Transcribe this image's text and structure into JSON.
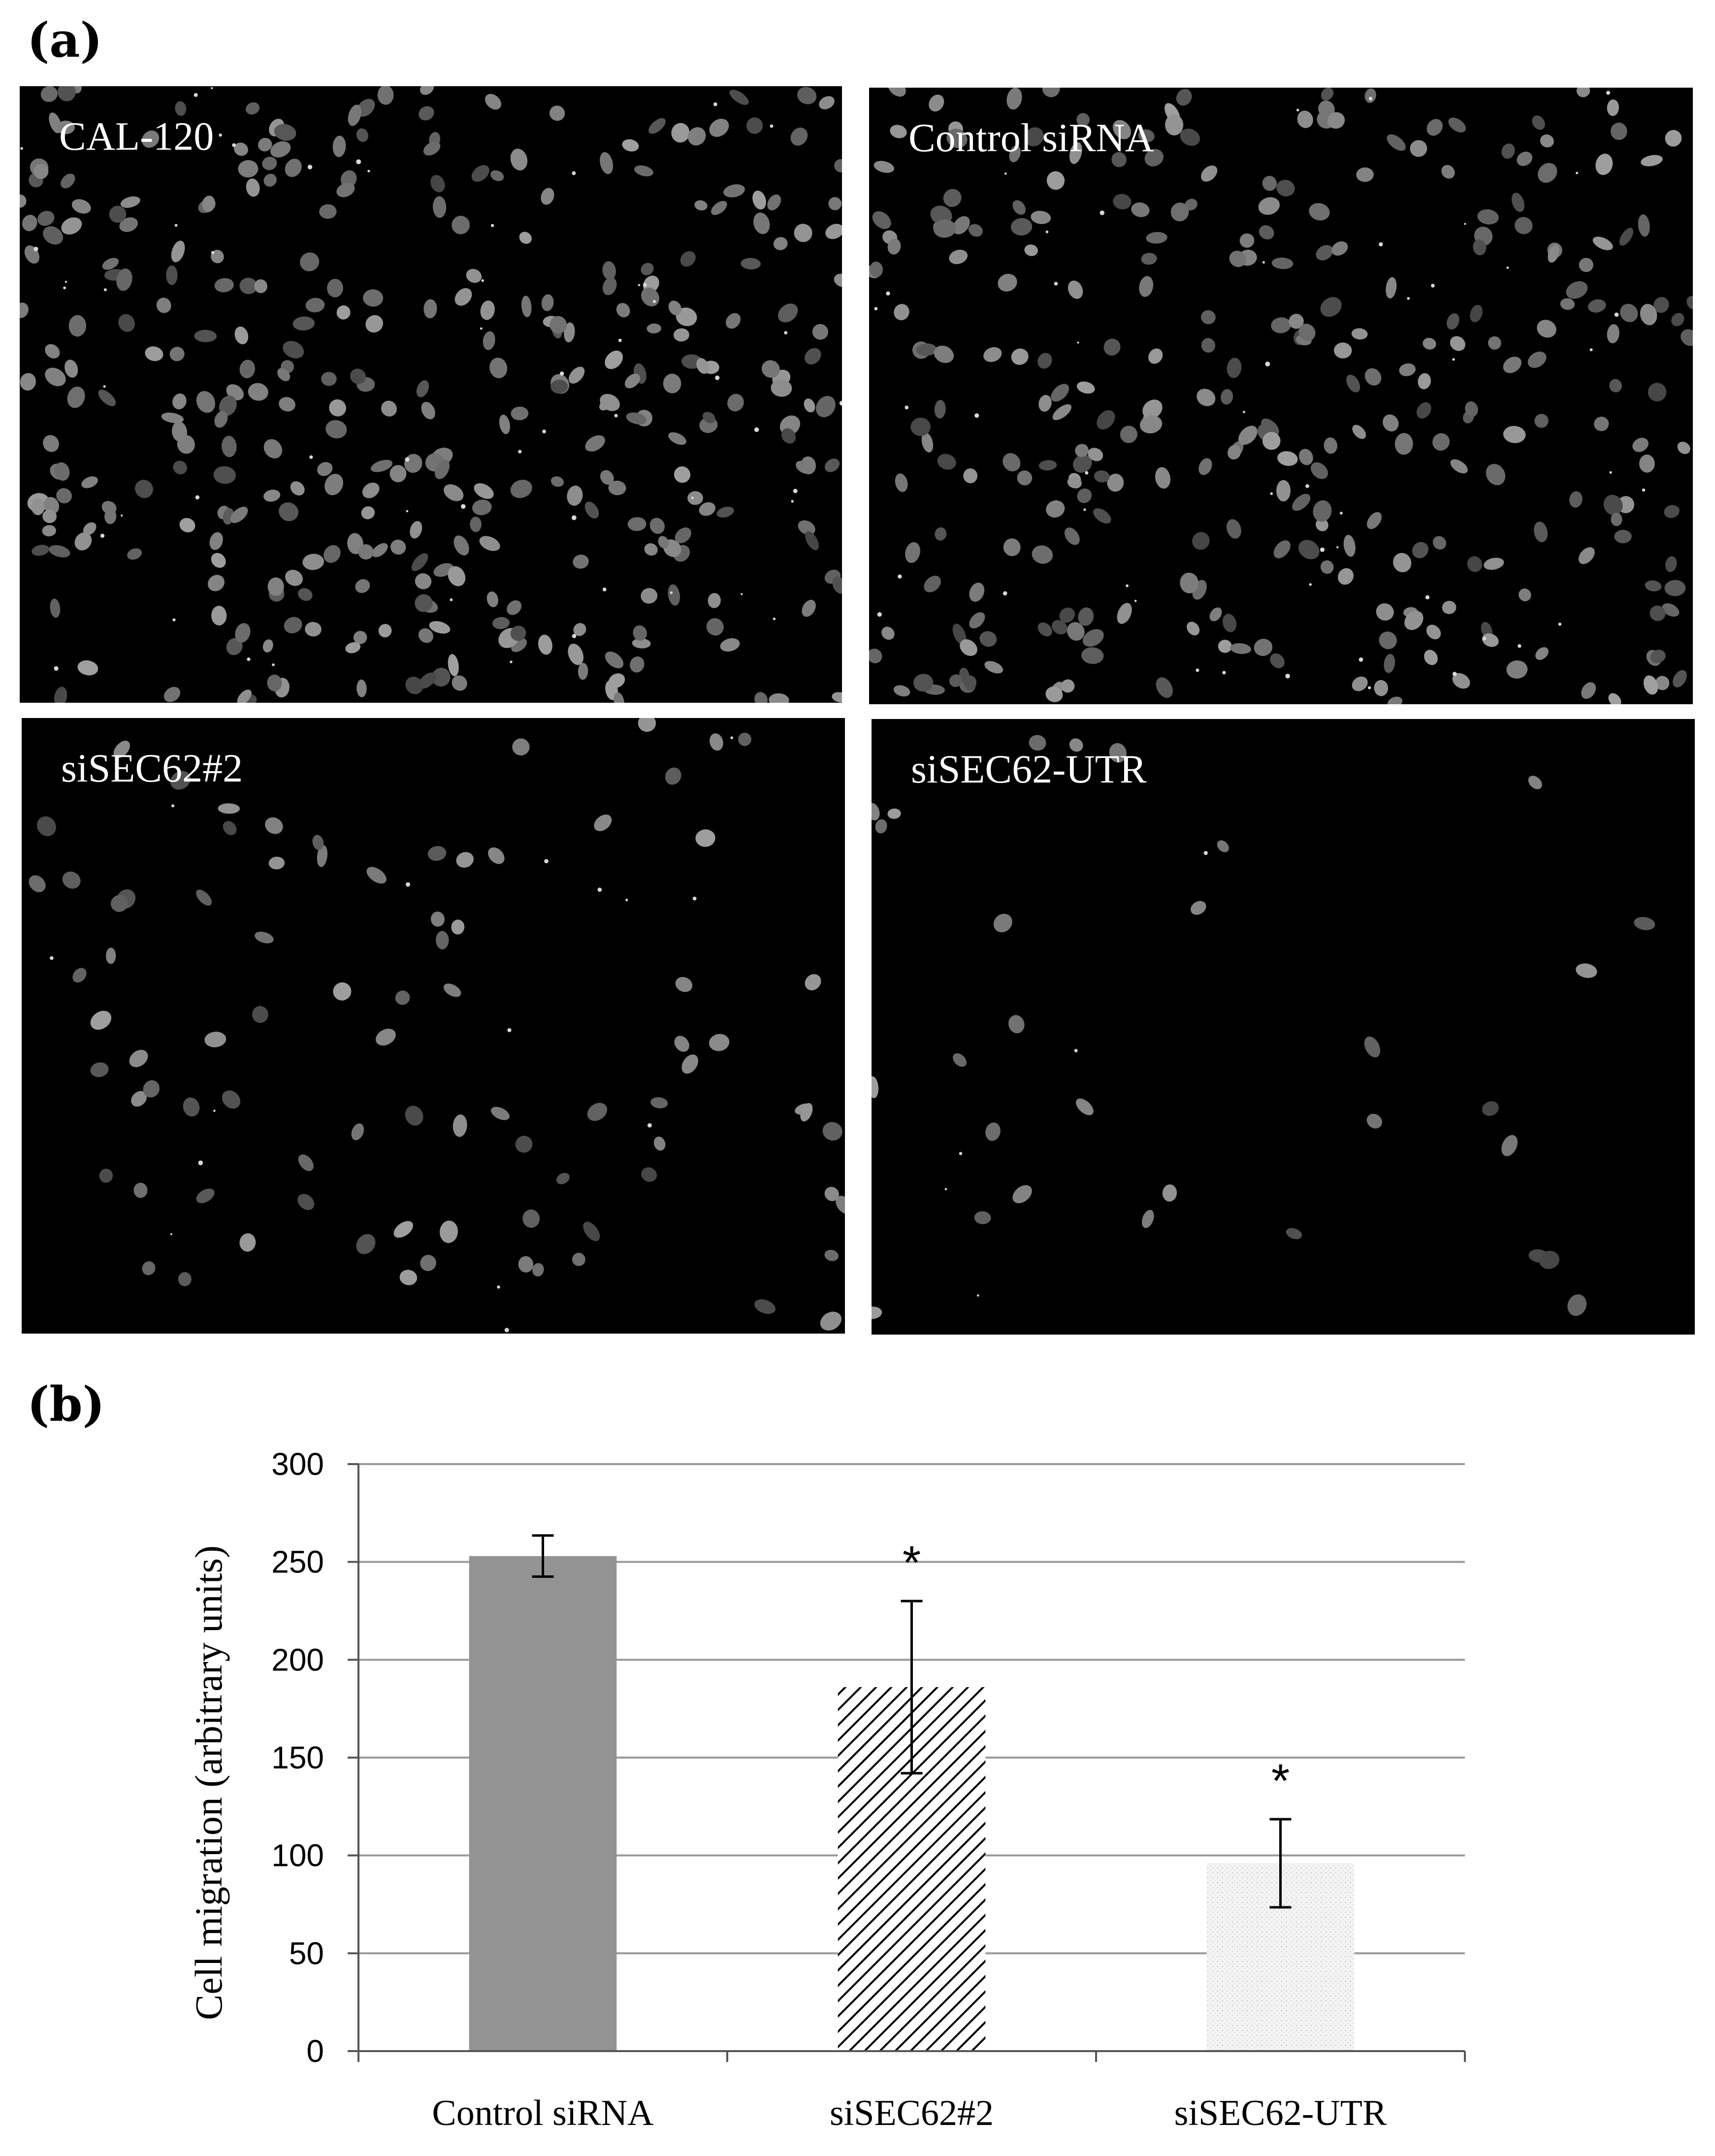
{
  "panel_a_label": "(a)",
  "panel_b_label": "(b)",
  "micrographs": [
    {
      "label": "CAL-120",
      "cell_density": "high"
    },
    {
      "label": "Control siRNA",
      "cell_density": "high"
    },
    {
      "label": "siSEC62#2",
      "cell_density": "medium"
    },
    {
      "label": "siSEC62-UTR",
      "cell_density": "low"
    }
  ],
  "chart_data": {
    "type": "bar",
    "title": "",
    "xlabel": "",
    "ylabel": "Cell migration (arbitrary units)",
    "ylim": [
      0,
      300
    ],
    "yticks": [
      0,
      50,
      100,
      150,
      200,
      250,
      300
    ],
    "grid": true,
    "categories": [
      "Control siRNA",
      "siSEC62#2",
      "siSEC62-UTR"
    ],
    "values": [
      253,
      186,
      96
    ],
    "error": [
      10.5,
      44,
      22.5
    ],
    "significance": [
      "",
      "*",
      "*"
    ],
    "bar_styles": [
      "solid gray",
      "diagonal hatch",
      "light dotted"
    ],
    "colors": {
      "bar1": "#939393",
      "hatch": "#000000",
      "bar3": "#f0f0f0",
      "grid": "#999999"
    }
  }
}
